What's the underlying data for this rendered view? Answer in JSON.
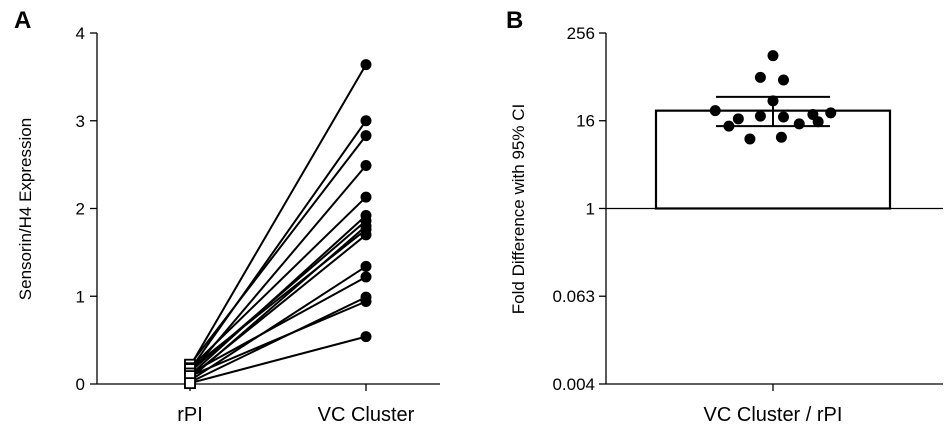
{
  "chart_data": [
    {
      "panel_label": "A",
      "type": "scatter",
      "style": "paired points connected by lines",
      "categories": [
        "rPI",
        "VC Cluster"
      ],
      "ylabel": "Sensorin/H4 Expression",
      "xlabel": "",
      "ylim": [
        0,
        4
      ],
      "yticks": [
        "0",
        "1",
        "2",
        "3",
        "4"
      ],
      "grid": false,
      "markers": {
        "rPI": "open-square",
        "VC Cluster": "filled-circle"
      },
      "pairs": [
        {
          "rPI": 0.2,
          "vc": 3.64
        },
        {
          "rPI": 0.16,
          "vc": 3.0
        },
        {
          "rPI": 0.22,
          "vc": 2.83
        },
        {
          "rPI": 0.12,
          "vc": 2.49
        },
        {
          "rPI": 0.18,
          "vc": 2.13
        },
        {
          "rPI": 0.1,
          "vc": 1.92
        },
        {
          "rPI": 0.14,
          "vc": 1.86
        },
        {
          "rPI": 0.06,
          "vc": 1.8
        },
        {
          "rPI": 0.17,
          "vc": 1.76
        },
        {
          "rPI": 0.08,
          "vc": 1.7
        },
        {
          "rPI": 0.04,
          "vc": 1.34
        },
        {
          "rPI": 0.12,
          "vc": 1.22
        },
        {
          "rPI": 0.02,
          "vc": 0.99
        },
        {
          "rPI": 0.09,
          "vc": 0.94
        },
        {
          "rPI": 0.01,
          "vc": 0.54
        }
      ]
    },
    {
      "panel_label": "B",
      "type": "bar",
      "scale": "log2",
      "categories": [
        "VC Cluster / rPI"
      ],
      "ylabel": "Fold Difference with 95% CI",
      "xlabel": "",
      "ylim": [
        0.004,
        256
      ],
      "yticks": [
        {
          "value": 256,
          "label": "256"
        },
        {
          "value": 16,
          "label": "16"
        },
        {
          "value": 1,
          "label": "1"
        },
        {
          "value": 0.0625,
          "label": "0.063"
        },
        {
          "value": 0.0039,
          "label": "0.004"
        }
      ],
      "baseline": 1,
      "grid": false,
      "bar_value": 22,
      "ci": [
        13.5,
        34
      ],
      "points": [
        {
          "value": 125,
          "offset": 0
        },
        {
          "value": 63,
          "offset": -0.12
        },
        {
          "value": 58,
          "offset": 0.1
        },
        {
          "value": 30,
          "offset": 0
        },
        {
          "value": 22,
          "offset": -0.55
        },
        {
          "value": 17,
          "offset": -0.33
        },
        {
          "value": 18.5,
          "offset": -0.12
        },
        {
          "value": 18,
          "offset": 0.1
        },
        {
          "value": 19.5,
          "offset": 0.38
        },
        {
          "value": 20.5,
          "offset": 0.55
        },
        {
          "value": 13.5,
          "offset": -0.42
        },
        {
          "value": 14.5,
          "offset": 0.25
        },
        {
          "value": 15.5,
          "offset": 0.43
        },
        {
          "value": 9,
          "offset": -0.22
        },
        {
          "value": 9.5,
          "offset": 0.08
        }
      ]
    }
  ]
}
